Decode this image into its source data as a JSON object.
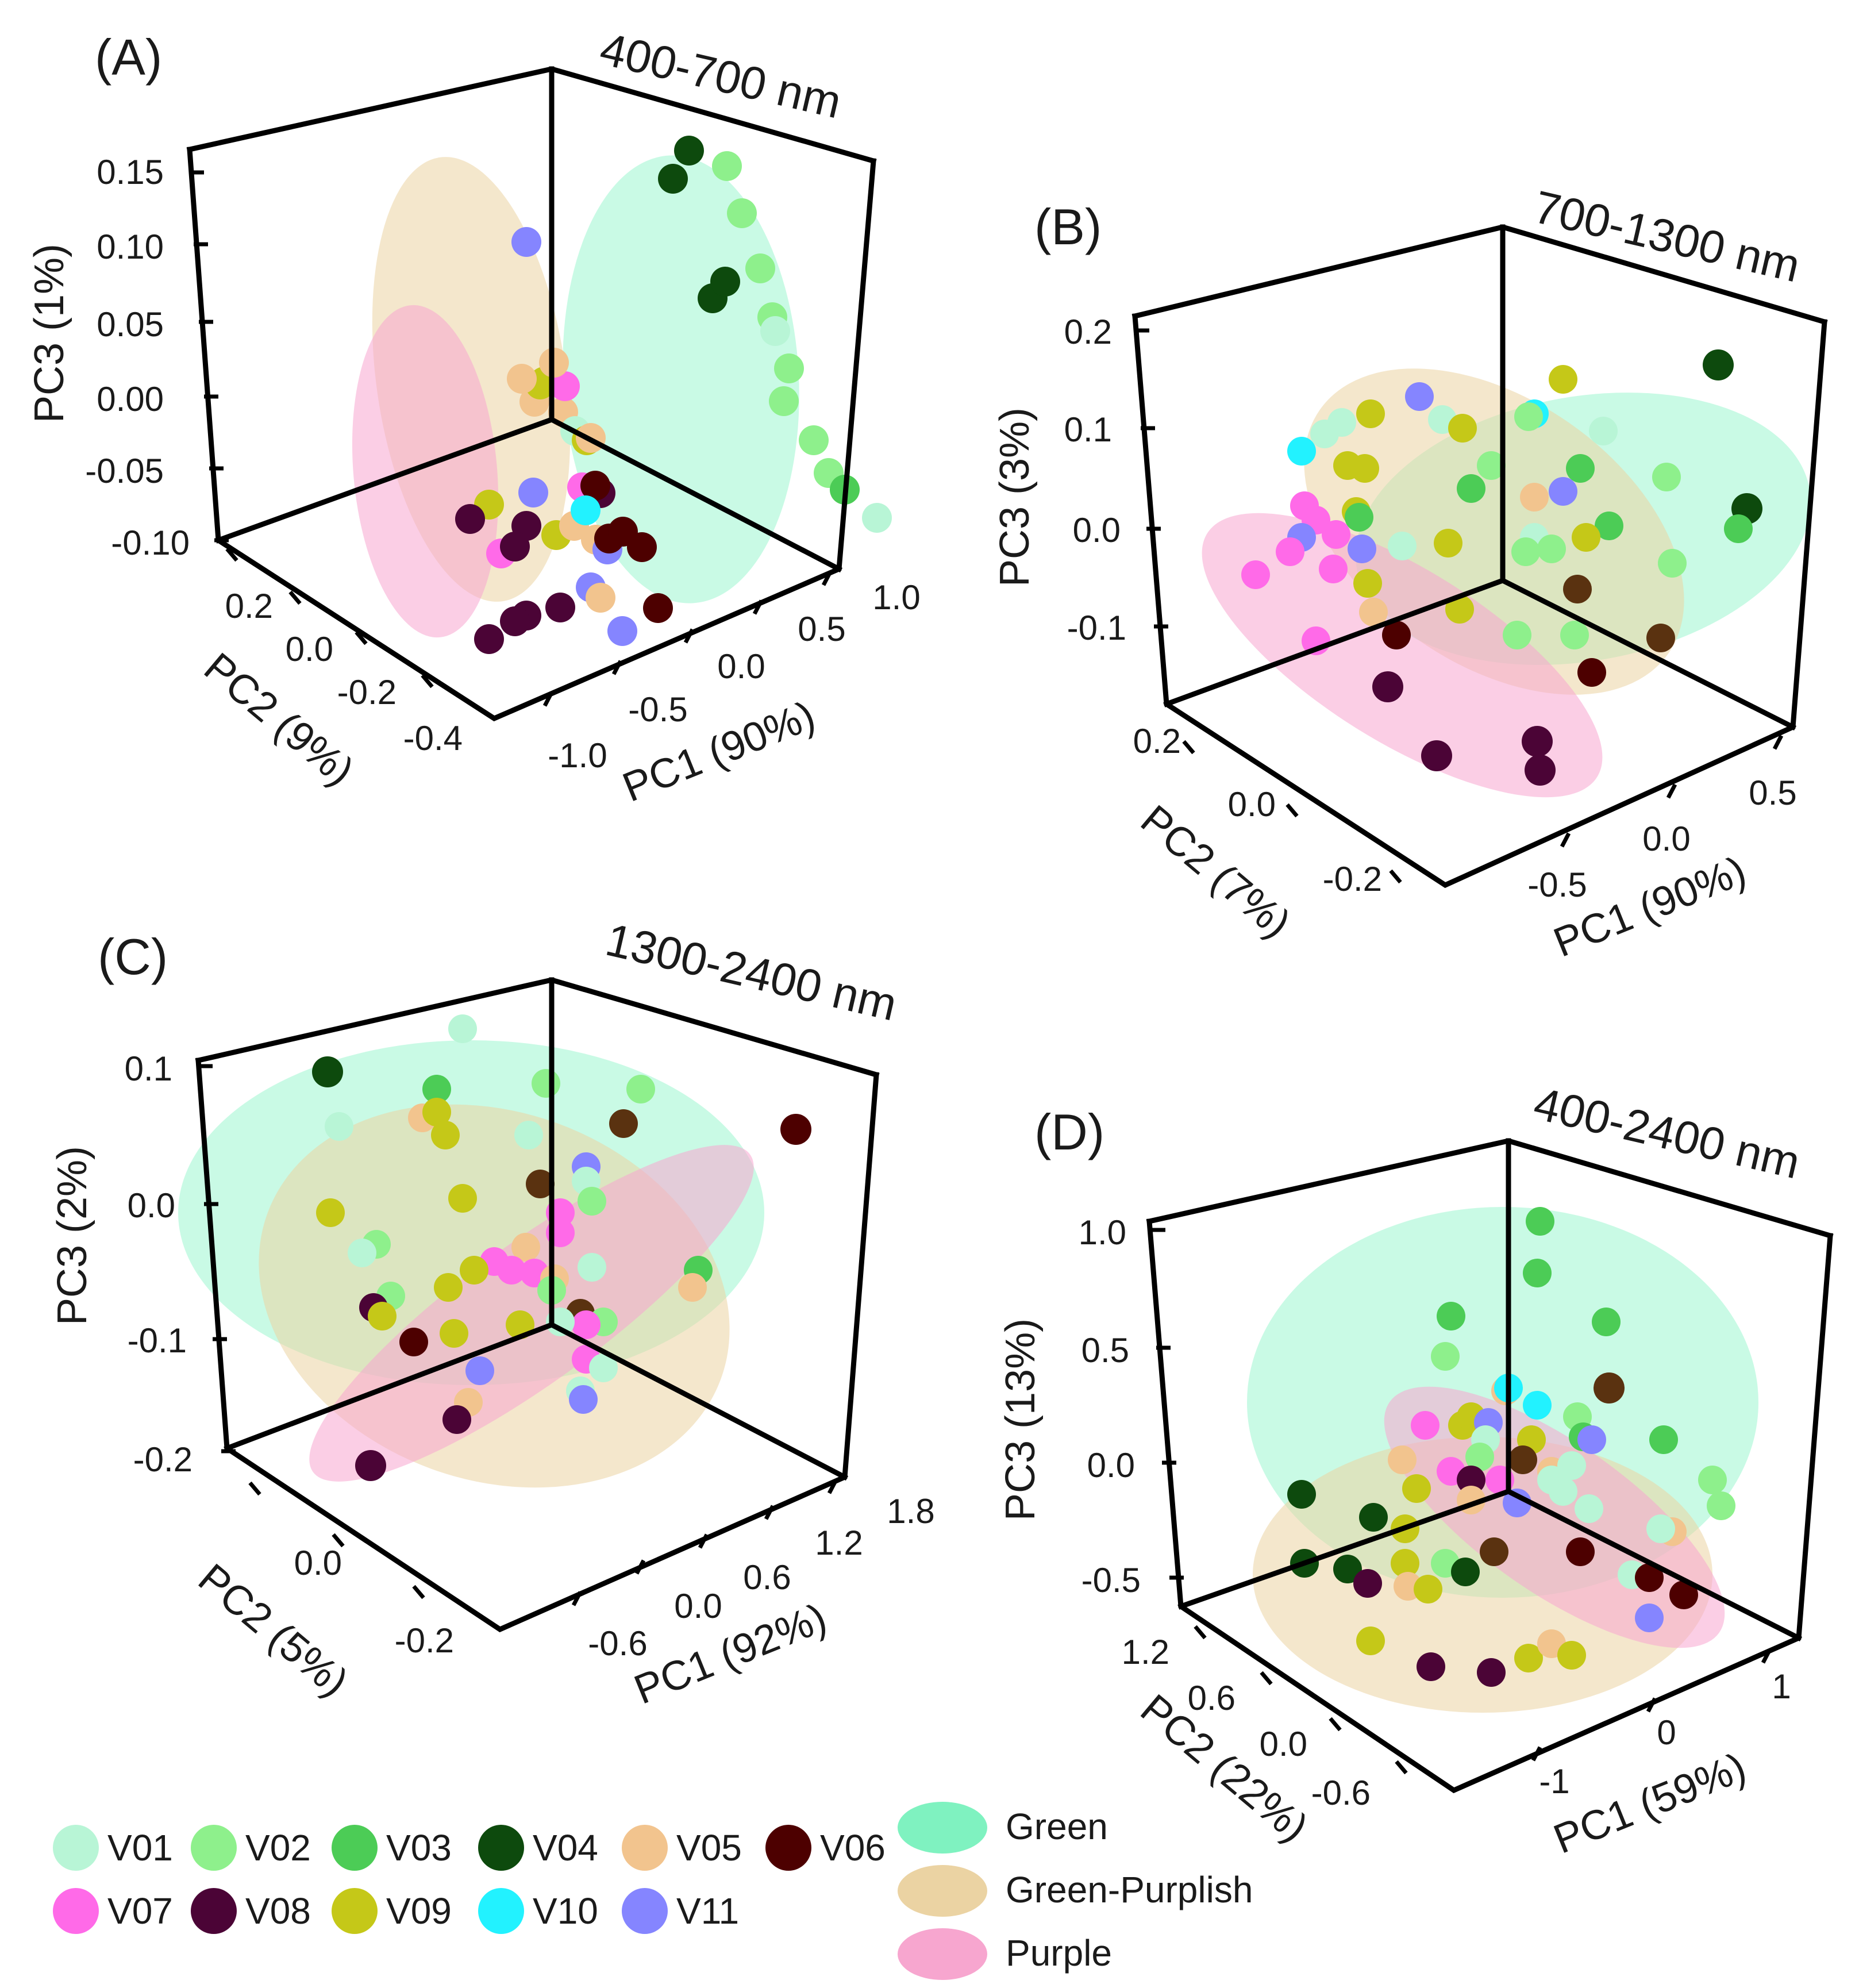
{
  "figure": {
    "legend": {
      "varieties": [
        {
          "name": "V01",
          "color": "#b8f5d6"
        },
        {
          "name": "V02",
          "color": "#8ef08c"
        },
        {
          "name": "V03",
          "color": "#4ccc56"
        },
        {
          "name": "V04",
          "color": "#0d4a0d"
        },
        {
          "name": "V05",
          "color": "#f2c48e"
        },
        {
          "name": "V06",
          "color": "#4d0000"
        },
        {
          "name": "V07",
          "color": "#ff6ae8"
        },
        {
          "name": "V08",
          "color": "#4b0436"
        },
        {
          "name": "V09",
          "color": "#c5c818"
        },
        {
          "name": "V10",
          "color": "#22f2ff"
        },
        {
          "name": "V11",
          "color": "#8585ff"
        }
      ],
      "groups": [
        {
          "name": "Green",
          "color": "#7ff2c0"
        },
        {
          "name": "Green-Purplish",
          "color": "#ebd3a3"
        },
        {
          "name": "Purple",
          "color": "#f7a6cf"
        }
      ]
    }
  },
  "chart_data": [
    {
      "type": "scatter",
      "projection": "3d",
      "panel": "(A)",
      "range": "400-700 nm",
      "x_label": "PC1 (90%)",
      "y_label": "PC2 (9%)",
      "z_label": "PC3 (1%)",
      "x_ticks": [
        "-1.0",
        "-0.5",
        "0.0",
        "0.5",
        "1.0"
      ],
      "y_ticks": [
        "0.2",
        "0.0",
        "-0.2",
        "-0.4"
      ],
      "z_ticks": [
        "0.15",
        "0.10",
        "0.05",
        "0.00",
        "-0.05",
        "-0.10"
      ],
      "points": [
        {
          "v": "V04",
          "pc": [
            0.85,
            0.1,
            0.13
          ]
        },
        {
          "v": "V04",
          "pc": [
            0.82,
            0.12,
            0.11
          ]
        },
        {
          "v": "V02",
          "pc": [
            0.95,
            0.06,
            0.12
          ]
        },
        {
          "v": "V02",
          "pc": [
            0.97,
            0.04,
            0.09
          ]
        },
        {
          "v": "V04",
          "pc": [
            0.8,
            0.05,
            0.04
          ]
        },
        {
          "v": "V04",
          "pc": [
            0.85,
            0.04,
            0.05
          ]
        },
        {
          "v": "V02",
          "pc": [
            0.93,
            0.0,
            0.06
          ]
        },
        {
          "v": "V02",
          "pc": [
            0.93,
            -0.02,
            0.03
          ]
        },
        {
          "v": "V01",
          "pc": [
            0.95,
            -0.02,
            0.02
          ]
        },
        {
          "v": "V02",
          "pc": [
            0.92,
            -0.05,
            0.0
          ]
        },
        {
          "v": "V02",
          "pc": [
            0.88,
            -0.05,
            -0.02
          ]
        },
        {
          "v": "V02",
          "pc": [
            0.88,
            -0.1,
            -0.04
          ]
        },
        {
          "v": "V02",
          "pc": [
            0.9,
            -0.12,
            -0.06
          ]
        },
        {
          "v": "V03",
          "pc": [
            0.93,
            -0.14,
            -0.07
          ]
        },
        {
          "v": "V01",
          "pc": [
            0.9,
            -0.2,
            -0.08
          ]
        },
        {
          "v": "V11",
          "pc": [
            -0.55,
            0.05,
            0.14
          ]
        },
        {
          "v": "V07",
          "pc": [
            -0.6,
            0.02,
            0.05
          ]
        },
        {
          "v": "V09",
          "pc": [
            -0.55,
            0.02,
            0.05
          ]
        },
        {
          "v": "V05",
          "pc": [
            -0.62,
            0.02,
            0.04
          ]
        },
        {
          "v": "V05",
          "pc": [
            -0.5,
            0.0,
            0.03
          ]
        },
        {
          "v": "V09",
          "pc": [
            -0.45,
            0.05,
            0.04
          ]
        },
        {
          "v": "V05",
          "pc": [
            -0.45,
            0.08,
            0.04
          ]
        },
        {
          "v": "V07",
          "pc": [
            -0.4,
            0.02,
            0.04
          ]
        },
        {
          "v": "V05",
          "pc": [
            -0.35,
            0.05,
            0.05
          ]
        },
        {
          "v": "V01",
          "pc": [
            -0.5,
            -0.02,
            0.02
          ]
        },
        {
          "v": "V09",
          "pc": [
            -0.55,
            -0.05,
            0.02
          ]
        },
        {
          "v": "V05",
          "pc": [
            -0.52,
            -0.05,
            0.02
          ]
        },
        {
          "v": "V07",
          "pc": [
            -0.45,
            -0.02,
            -0.02
          ]
        },
        {
          "v": "V08",
          "pc": [
            -0.45,
            -0.05,
            -0.02
          ]
        },
        {
          "v": "V06",
          "pc": [
            -0.4,
            -0.03,
            -0.02
          ]
        },
        {
          "v": "V11",
          "pc": [
            -0.5,
            0.05,
            -0.03
          ]
        },
        {
          "v": "V08",
          "pc": [
            -0.55,
            0.05,
            -0.05
          ]
        },
        {
          "v": "V09",
          "pc": [
            -0.6,
            0.1,
            -0.04
          ]
        },
        {
          "v": "V05",
          "pc": [
            -0.48,
            -0.05,
            -0.05
          ]
        },
        {
          "v": "V09",
          "pc": [
            -0.55,
            0.0,
            -0.05
          ]
        },
        {
          "v": "V07",
          "pc": [
            -0.6,
            0.08,
            -0.07
          ]
        },
        {
          "v": "V08",
          "pc": [
            -0.65,
            0.12,
            -0.05
          ]
        },
        {
          "v": "V08",
          "pc": [
            -0.5,
            0.08,
            -0.07
          ]
        },
        {
          "v": "V05",
          "pc": [
            -0.42,
            0.0,
            -0.05
          ]
        },
        {
          "v": "V11",
          "pc": [
            -0.4,
            -0.05,
            -0.06
          ]
        },
        {
          "v": "V06",
          "pc": [
            -0.3,
            -0.03,
            -0.06
          ]
        },
        {
          "v": "V06",
          "pc": [
            -0.2,
            -0.03,
            -0.06
          ]
        },
        {
          "v": "V10",
          "pc": [
            -0.25,
            0.02,
            -0.05
          ]
        },
        {
          "v": "V06",
          "pc": [
            -0.15,
            -0.05,
            -0.07
          ]
        },
        {
          "v": "V11",
          "pc": [
            -0.52,
            -0.05,
            -0.08
          ]
        },
        {
          "v": "V08",
          "pc": [
            -0.52,
            0.0,
            -0.1
          ]
        },
        {
          "v": "V05",
          "pc": [
            -0.45,
            -0.05,
            -0.09
          ]
        },
        {
          "v": "V06",
          "pc": [
            -0.25,
            -0.1,
            -0.1
          ]
        },
        {
          "v": "V08",
          "pc": [
            -0.55,
            0.05,
            -0.11
          ]
        },
        {
          "v": "V08",
          "pc": [
            -0.5,
            0.08,
            -0.12
          ]
        },
        {
          "v": "V11",
          "pc": [
            -0.42,
            -0.08,
            -0.11
          ]
        },
        {
          "v": "V08",
          "pc": [
            -0.6,
            0.1,
            -0.13
          ]
        }
      ],
      "groups": [
        {
          "name": "Green",
          "cx": 0.88,
          "cy": -0.03,
          "cz": 0.02,
          "rx": 0.22,
          "ry": 0.55
        },
        {
          "name": "Green-Purplish",
          "cx": -0.45,
          "cy": 0.0,
          "cz": 0.02,
          "rx": 0.28,
          "ry": 0.55
        },
        {
          "name": "Purple",
          "cx": -0.58,
          "cy": 0.05,
          "cz": -0.04,
          "rx": 0.22,
          "ry": 0.45
        }
      ]
    },
    {
      "type": "scatter",
      "projection": "3d",
      "panel": "(B)",
      "range": "700-1300 nm",
      "x_label": "PC1 (90%)",
      "y_label": "PC2 (7%)",
      "z_label": "PC3 (3%)",
      "x_ticks": [
        "-0.5",
        "0.0",
        "0.5"
      ],
      "y_ticks": [
        "0.2",
        "0.0",
        "-0.2"
      ],
      "z_ticks": [
        "0.2",
        "0.1",
        "0.0",
        "-0.1"
      ]
    },
    {
      "type": "scatter",
      "projection": "3d",
      "panel": "(C)",
      "range": "1300-2400 nm",
      "x_label": "PC1 (92%)",
      "y_label": "PC2 (5%)",
      "z_label": "PC3 (2%)",
      "x_ticks": [
        "-0.6",
        "0.0",
        "0.6",
        "1.2",
        "1.8"
      ],
      "y_ticks": [
        "0.0",
        "-0.2"
      ],
      "z_ticks": [
        "0.1",
        "0.0",
        "-0.1",
        "-0.2"
      ]
    },
    {
      "type": "scatter",
      "projection": "3d",
      "panel": "(D)",
      "range": "400-2400 nm",
      "x_label": "PC1 (59%)",
      "y_label": "PC2 (22%)",
      "z_label": "PC3 (13%)",
      "x_ticks": [
        "-1",
        "0",
        "1"
      ],
      "y_ticks": [
        "1.2",
        "0.6",
        "0.0",
        "-0.6"
      ],
      "z_ticks": [
        "1.0",
        "0.5",
        "0.0",
        "-0.5"
      ]
    }
  ]
}
